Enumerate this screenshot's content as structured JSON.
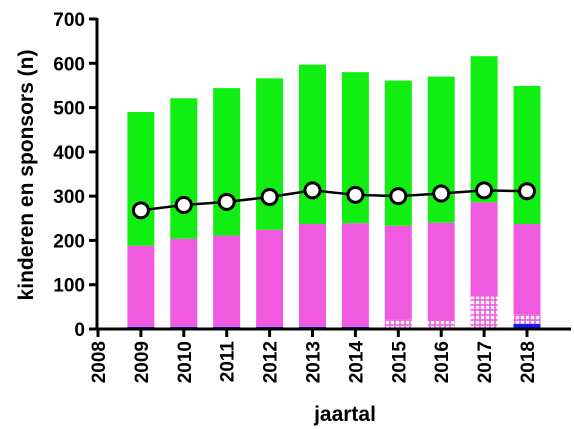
{
  "chart_data": {
    "type": "bar",
    "stacked": true,
    "xlabel": "jaartal",
    "ylabel": "kinderen en sponsors (n)",
    "ylim": [
      0,
      700
    ],
    "yticks": [
      0,
      100,
      200,
      300,
      400,
      500,
      600,
      700
    ],
    "xticks": [
      "2008",
      "2009",
      "2010",
      "2011",
      "2012",
      "2013",
      "2014",
      "2015",
      "2016",
      "2017",
      "2018"
    ],
    "categories": [
      "2009",
      "2010",
      "2011",
      "2012",
      "2013",
      "2014",
      "2015",
      "2016",
      "2017",
      "2018"
    ],
    "grid": false,
    "legend": "none",
    "colors": {
      "blue": "#1a1aff",
      "white_pattern": "#ffffff",
      "magenta": "#f05ae1",
      "green": "#11ee11",
      "line": "#000000",
      "marker_fill": "#ffffff"
    },
    "series": [
      {
        "kind": "bar",
        "color": "blue",
        "values": [
          5,
          5,
          5,
          5,
          5,
          5,
          3,
          3,
          3,
          12
        ]
      },
      {
        "kind": "bar",
        "color": "white_pattern",
        "pattern": "grid",
        "values": [
          0,
          0,
          0,
          0,
          0,
          0,
          18,
          15,
          70,
          20
        ]
      },
      {
        "kind": "bar",
        "color": "magenta",
        "values": [
          183,
          199,
          206,
          219,
          232,
          234,
          212,
          222,
          213,
          205
        ]
      },
      {
        "kind": "bar",
        "color": "green",
        "values": [
          302,
          317,
          333,
          342,
          360,
          341,
          328,
          330,
          330,
          312
        ]
      },
      {
        "kind": "line",
        "color": "line",
        "marker": "circle",
        "values": [
          268,
          280,
          287,
          298,
          313,
          303,
          300,
          306,
          313,
          311
        ]
      }
    ]
  }
}
